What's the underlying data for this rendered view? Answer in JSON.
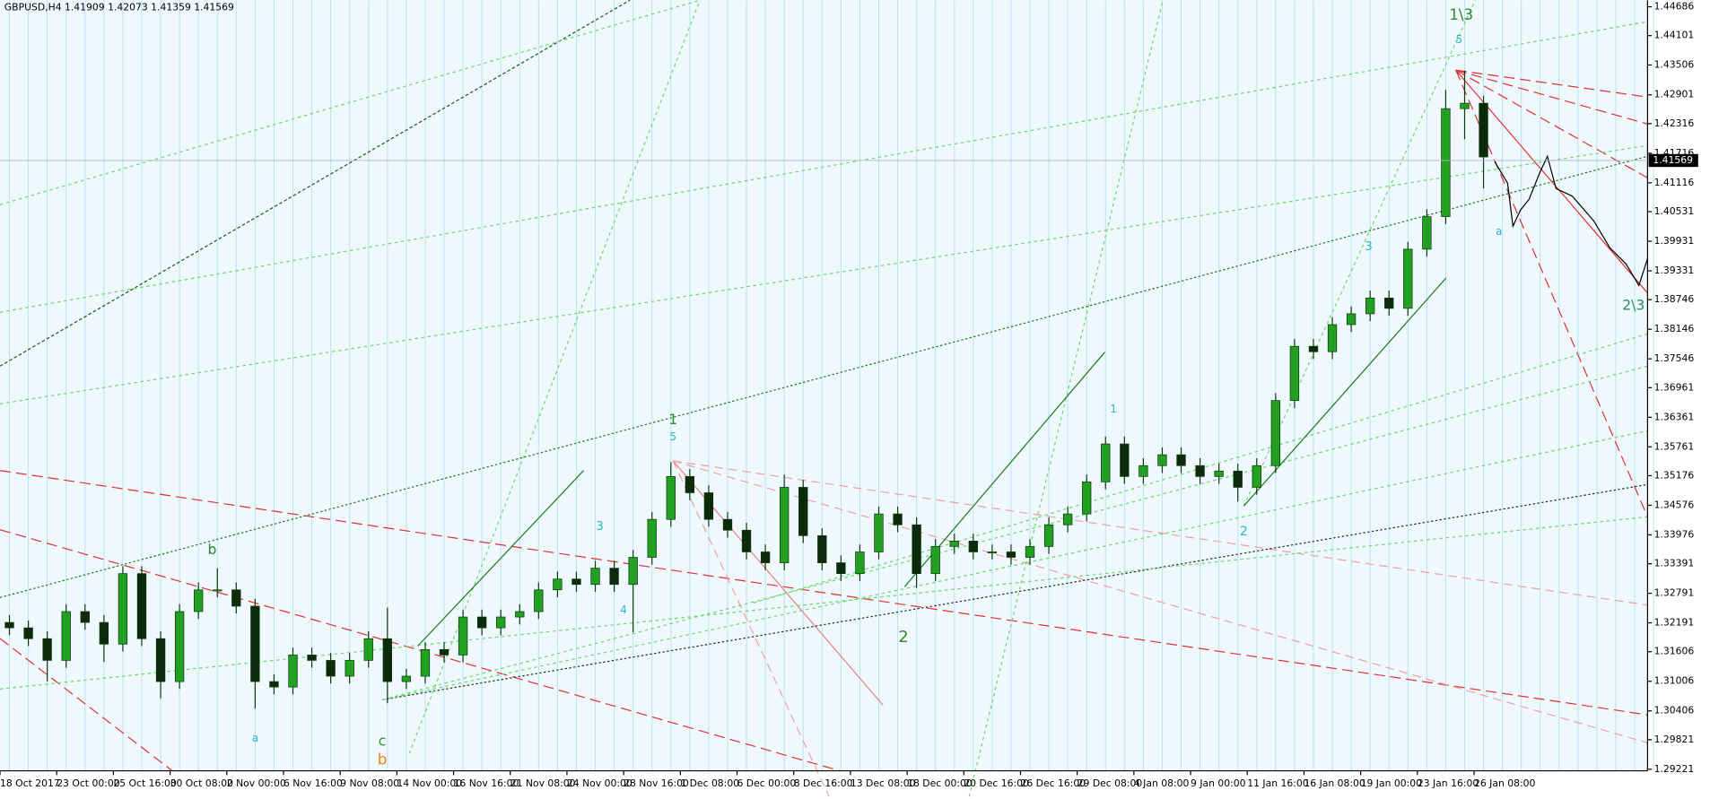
{
  "chart_data": {
    "type": "candlestick",
    "title": "GBPUSD,H4  1.41909 1.42073 1.41359 1.41569",
    "categories": [
      "18 Oct 2017",
      null,
      null,
      "23 Oct 00:00",
      null,
      null,
      "25 Oct 16:00",
      null,
      null,
      "30 Oct 08:00",
      null,
      null,
      "2 Nov 00:00",
      null,
      null,
      "6 Nov 16:00",
      null,
      null,
      "9 Nov 08:00",
      null,
      null,
      "14 Nov 00:00",
      null,
      null,
      "16 Nov 16:00",
      null,
      null,
      "21 Nov 08:00",
      null,
      null,
      "24 Nov 00:00",
      null,
      null,
      "28 Nov 16:00",
      null,
      null,
      "1 Dec 08:00",
      null,
      null,
      "6 Dec 00:00",
      null,
      null,
      "8 Dec 16:00",
      null,
      null,
      "13 Dec 08:00",
      null,
      null,
      "18 Dec 00:00",
      null,
      null,
      "20 Dec 16:00",
      null,
      null,
      "26 Dec 16:00",
      null,
      null,
      "29 Dec 08:00",
      null,
      null,
      "4 Jan 08:00",
      null,
      null,
      "9 Jan 00:00",
      null,
      null,
      "11 Jan 16:00",
      null,
      null,
      "16 Jan 08:00",
      null,
      null,
      "19 Jan 00:00",
      null,
      null,
      "23 Jan 16:00",
      null,
      null,
      "26 Jan 08:00"
    ],
    "open": [
      1.322,
      1.3209,
      1.3187,
      1.3143,
      1.3242,
      1.322,
      1.3176,
      1.3319,
      1.3187,
      1.31,
      1.3242,
      1.3286,
      1.3286,
      1.3253,
      1.31,
      1.3089,
      1.3154,
      1.3143,
      1.3111,
      1.3143,
      1.3187,
      1.31,
      1.3111,
      1.3165,
      1.3154,
      1.3231,
      1.3209,
      1.3231,
      1.3242,
      1.3286,
      1.3308,
      1.3297,
      1.333,
      1.3297,
      1.3352,
      1.3429,
      1.3516,
      1.3483,
      1.3429,
      1.3407,
      1.3363,
      1.3341,
      1.3494,
      1.3396,
      1.3341,
      1.3319,
      1.3363,
      1.344,
      1.3418,
      1.3319,
      1.3374,
      1.3385,
      1.3363,
      1.3363,
      1.3352,
      1.3374,
      1.3418,
      1.344,
      1.3505,
      1.3582,
      1.3516,
      1.3538,
      1.356,
      1.3538,
      1.3516,
      1.3527,
      1.3494,
      1.3538,
      1.367,
      1.378,
      1.3769,
      1.3824,
      1.3846,
      1.3878,
      1.3857,
      1.3977,
      1.4043,
      1.4262,
      1.4273
    ],
    "high": [
      1.3235,
      1.3224,
      1.3202,
      1.3257,
      1.3257,
      1.3235,
      1.3334,
      1.3334,
      1.3202,
      1.3257,
      1.3301,
      1.333,
      1.3301,
      1.3268,
      1.3115,
      1.3169,
      1.3169,
      1.3158,
      1.3158,
      1.3202,
      1.325,
      1.3126,
      1.318,
      1.318,
      1.3246,
      1.3246,
      1.3246,
      1.3257,
      1.3301,
      1.3323,
      1.3323,
      1.3345,
      1.3345,
      1.3367,
      1.3444,
      1.3545,
      1.3531,
      1.3498,
      1.3444,
      1.3422,
      1.3378,
      1.352,
      1.3509,
      1.3411,
      1.3356,
      1.3378,
      1.3455,
      1.3455,
      1.3433,
      1.3389,
      1.34,
      1.34,
      1.3378,
      1.3378,
      1.3389,
      1.3433,
      1.3455,
      1.352,
      1.3597,
      1.3597,
      1.3553,
      1.3575,
      1.3575,
      1.3553,
      1.3542,
      1.3542,
      1.3553,
      1.3685,
      1.3795,
      1.3795,
      1.3839,
      1.3861,
      1.3893,
      1.3893,
      1.3992,
      1.4058,
      1.43,
      1.4339,
      1.4288
    ],
    "low": [
      1.3194,
      1.3172,
      1.31,
      1.3128,
      1.3205,
      1.314,
      1.3161,
      1.3172,
      1.3066,
      1.3085,
      1.3227,
      1.3271,
      1.3238,
      1.3045,
      1.3074,
      1.3074,
      1.3128,
      1.3096,
      1.3096,
      1.3128,
      1.3056,
      1.3085,
      1.3096,
      1.3139,
      1.3139,
      1.3194,
      1.3194,
      1.3216,
      1.3227,
      1.3271,
      1.3282,
      1.3282,
      1.3282,
      1.32,
      1.3337,
      1.3414,
      1.3468,
      1.3414,
      1.3392,
      1.3348,
      1.3326,
      1.3326,
      1.3381,
      1.3326,
      1.3304,
      1.3304,
      1.3348,
      1.3403,
      1.329,
      1.3304,
      1.3359,
      1.3348,
      1.3348,
      1.3337,
      1.3337,
      1.3359,
      1.3403,
      1.3425,
      1.349,
      1.3501,
      1.3501,
      1.3523,
      1.3523,
      1.3501,
      1.3501,
      1.3465,
      1.3479,
      1.3523,
      1.3655,
      1.3754,
      1.3754,
      1.3809,
      1.3831,
      1.3842,
      1.3842,
      1.3962,
      1.4028,
      1.42,
      1.41
    ],
    "close": [
      1.3209,
      1.3187,
      1.3143,
      1.3242,
      1.322,
      1.3176,
      1.3319,
      1.3187,
      1.31,
      1.3242,
      1.3286,
      1.3286,
      1.3253,
      1.31,
      1.3089,
      1.3154,
      1.3143,
      1.3111,
      1.3143,
      1.3187,
      1.31,
      1.3111,
      1.3165,
      1.3154,
      1.3231,
      1.3209,
      1.3231,
      1.3242,
      1.3286,
      1.3308,
      1.3297,
      1.333,
      1.3297,
      1.3352,
      1.3429,
      1.3516,
      1.3483,
      1.3429,
      1.3407,
      1.3363,
      1.3341,
      1.3494,
      1.3396,
      1.3341,
      1.3319,
      1.3363,
      1.344,
      1.3418,
      1.3319,
      1.3374,
      1.3385,
      1.3363,
      1.3363,
      1.3352,
      1.3374,
      1.3418,
      1.344,
      1.3505,
      1.3582,
      1.3516,
      1.3538,
      1.356,
      1.3538,
      1.3516,
      1.3527,
      1.3494,
      1.3538,
      1.367,
      1.378,
      1.3769,
      1.3824,
      1.3846,
      1.3878,
      1.3857,
      1.3977,
      1.4043,
      1.4262,
      1.4273,
      1.4164
    ],
    "up_color": "#22a022",
    "down_color": "#0d2a0d",
    "ylim": [
      1.2919,
      1.4482
    ],
    "yticks": [
      1.44686,
      1.44101,
      1.43506,
      1.42901,
      1.42316,
      1.41716,
      1.41116,
      1.40531,
      1.39931,
      1.39331,
      1.38746,
      1.38146,
      1.37546,
      1.36961,
      1.36361,
      1.35761,
      1.35176,
      1.34576,
      1.33976,
      1.33391,
      1.32791,
      1.32191,
      1.31606,
      1.31006,
      1.30406,
      1.29821,
      1.29221
    ],
    "current_price": 1.41569,
    "grid": "vertical",
    "annotations": [
      {
        "text": "1\\3",
        "color": "#2e8b2e"
      },
      {
        "text": "5",
        "color": "#2bb5c8"
      },
      {
        "text": "2\\3",
        "color": "#2e8b5e"
      },
      {
        "text": "1",
        "color": "#2e8b2e"
      },
      {
        "text": "5",
        "color": "#2bb5c8"
      },
      {
        "text": "2",
        "color": "#2e8b2e"
      },
      {
        "text": "b",
        "color": "#2e8b2e"
      },
      {
        "text": "c",
        "color": "#2e8b2e"
      },
      {
        "text": "b",
        "color": "#f08010"
      },
      {
        "text": "2",
        "color": "#2bb5c8"
      },
      {
        "text": "3",
        "color": "#2bb5c8"
      },
      {
        "text": "1",
        "color": "#2bb5c8"
      },
      {
        "text": "3",
        "color": "#2bb5c8"
      },
      {
        "text": "4",
        "color": "#2bb5c8"
      },
      {
        "text": "a",
        "color": "#2bb5c8"
      },
      {
        "text": "a",
        "color": "#2bb5c8"
      }
    ]
  }
}
